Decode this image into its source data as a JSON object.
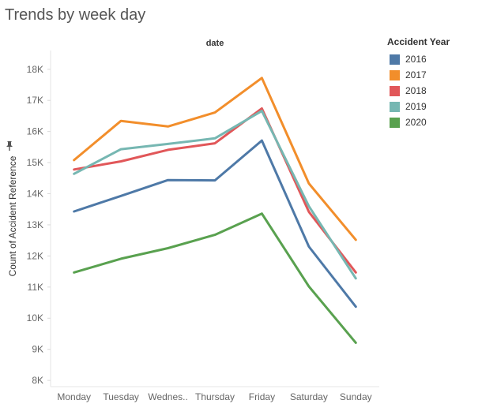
{
  "page": {
    "title": "Trends by week day"
  },
  "legend": {
    "title": "Accident Year"
  },
  "chart_data": {
    "type": "line",
    "title": "Trends by week day",
    "column_header": "date",
    "xlabel": "",
    "ylabel": "Count of Accident Reference",
    "categories": [
      "Monday",
      "Tuesday",
      "Wednes..",
      "Thursday",
      "Friday",
      "Saturday",
      "Sunday"
    ],
    "ylim": [
      7800,
      18400
    ],
    "yticks": [
      8000,
      9000,
      10000,
      11000,
      12000,
      13000,
      14000,
      15000,
      16000,
      17000,
      18000
    ],
    "ytick_labels": [
      "8K",
      "9K",
      "10K",
      "11K",
      "12K",
      "13K",
      "14K",
      "15K",
      "16K",
      "17K",
      "18K"
    ],
    "grid": false,
    "legend_position": "right",
    "series": [
      {
        "name": "2016",
        "color": "#4e79a7",
        "values": [
          13430,
          13930,
          14440,
          14430,
          15710,
          12300,
          10370
        ]
      },
      {
        "name": "2017",
        "color": "#f28e2b",
        "values": [
          15080,
          16340,
          16160,
          16610,
          17720,
          14330,
          12520
        ]
      },
      {
        "name": "2018",
        "color": "#e15759",
        "values": [
          14780,
          15040,
          15410,
          15620,
          16740,
          13420,
          11470
        ]
      },
      {
        "name": "2019",
        "color": "#76b7b2",
        "values": [
          14640,
          15430,
          15600,
          15780,
          16660,
          13600,
          11280
        ]
      },
      {
        "name": "2020",
        "color": "#59a14f",
        "values": [
          11470,
          11910,
          12250,
          12680,
          13360,
          11020,
          9210
        ]
      }
    ]
  }
}
